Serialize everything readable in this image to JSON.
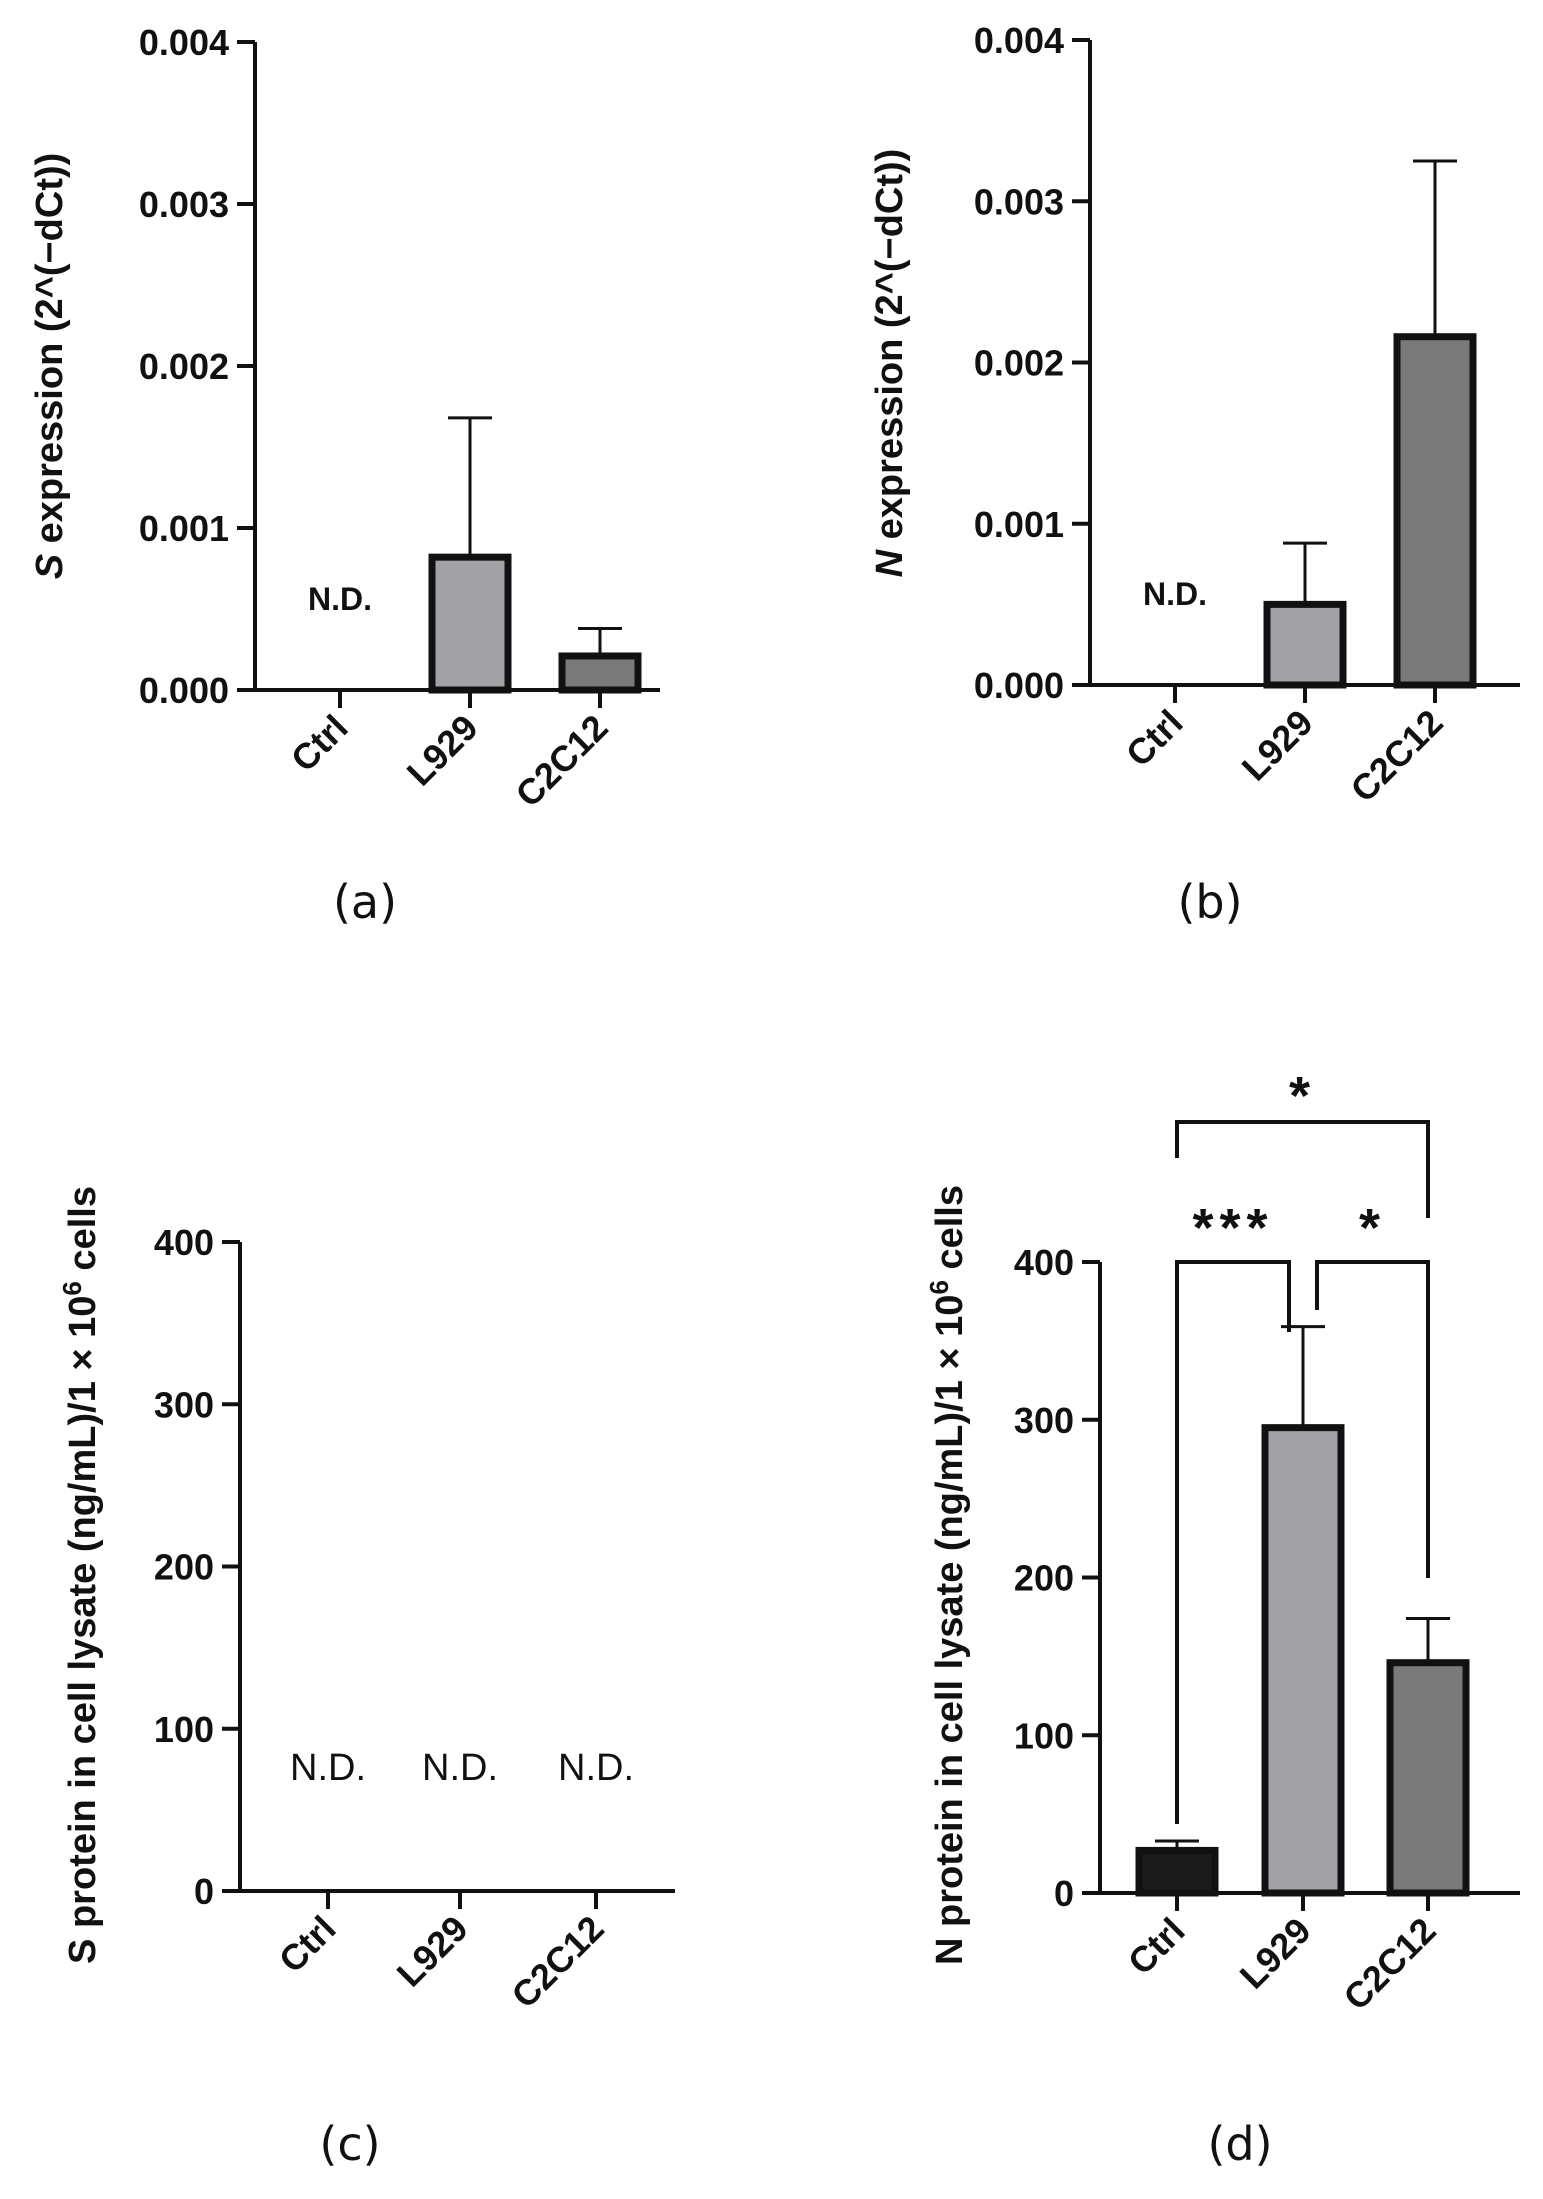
{
  "chart_data": [
    {
      "panel": "(a)",
      "type": "bar",
      "ylabel_italic": "S",
      "ylabel_rest": " expression (2^(−dCt))",
      "ylim": [
        0,
        0.004
      ],
      "yticks": [
        "0.000",
        "0.001",
        "0.002",
        "0.003",
        "0.004"
      ],
      "ytick_values": [
        0,
        0.001,
        0.002,
        0.003,
        0.004
      ],
      "categories": [
        "Ctrl",
        "L929",
        "C2C12"
      ],
      "values": [
        null,
        0.00082,
        0.00021
      ],
      "errors": [
        null,
        0.00086,
        0.00017
      ],
      "colors": [
        "#1a1a1a",
        "#a2a2a6",
        "#7a7a7a"
      ],
      "labels": [
        "N.D.",
        "",
        ""
      ]
    },
    {
      "panel": "(b)",
      "type": "bar",
      "ylabel_italic": "N",
      "ylabel_rest": " expression (2^(−dCt))",
      "ylim": [
        0,
        0.004
      ],
      "yticks": [
        "0.000",
        "0.001",
        "0.002",
        "0.003",
        "0.004"
      ],
      "ytick_values": [
        0,
        0.001,
        0.002,
        0.003,
        0.004
      ],
      "categories": [
        "Ctrl",
        "L929",
        "C2C12"
      ],
      "values": [
        null,
        0.0005,
        0.00216
      ],
      "errors": [
        null,
        0.00038,
        0.00109
      ],
      "colors": [
        "#1a1a1a",
        "#a2a2a6",
        "#7a7a7a"
      ],
      "labels": [
        "N.D.",
        "",
        ""
      ]
    },
    {
      "panel": "(c)",
      "type": "bar",
      "ylabel_main": "S protein in cell lysate (ng/mL)/1 × 10",
      "ylabel_sup": "6",
      "ylabel_end": " cells",
      "ylim": [
        0,
        400
      ],
      "yticks": [
        "0",
        "100",
        "200",
        "300",
        "400"
      ],
      "ytick_values": [
        0,
        100,
        200,
        300,
        400
      ],
      "categories": [
        "Ctrl",
        "L929",
        "C2C12"
      ],
      "values": [
        null,
        null,
        null
      ],
      "errors": [
        null,
        null,
        null
      ],
      "colors": [
        "#1a1a1a",
        "#a2a2a6",
        "#7a7a7a"
      ],
      "labels": [
        "N.D.",
        "N.D.",
        "N.D."
      ]
    },
    {
      "panel": "(d)",
      "type": "bar",
      "ylabel_main": "N protein in cell lysate (ng/mL)/1 × 10",
      "ylabel_sup": "6",
      "ylabel_end": " cells",
      "ylim": [
        0,
        400
      ],
      "yticks": [
        "0",
        "100",
        "200",
        "300",
        "400"
      ],
      "ytick_values": [
        0,
        100,
        200,
        300,
        400
      ],
      "categories": [
        "Ctrl",
        "L929",
        "C2C12"
      ],
      "values": [
        27,
        295,
        146
      ],
      "errors": [
        6,
        64,
        28
      ],
      "colors": [
        "#1a1a1a",
        "#a2a2a6",
        "#7a7a7a"
      ],
      "labels": [
        "",
        "",
        ""
      ],
      "significance": [
        {
          "pair": [
            "Ctrl",
            "L929"
          ],
          "label": "***"
        },
        {
          "pair": [
            "L929",
            "C2C12"
          ],
          "label": "*"
        },
        {
          "pair": [
            "Ctrl",
            "C2C12"
          ],
          "label": "*"
        }
      ]
    }
  ]
}
